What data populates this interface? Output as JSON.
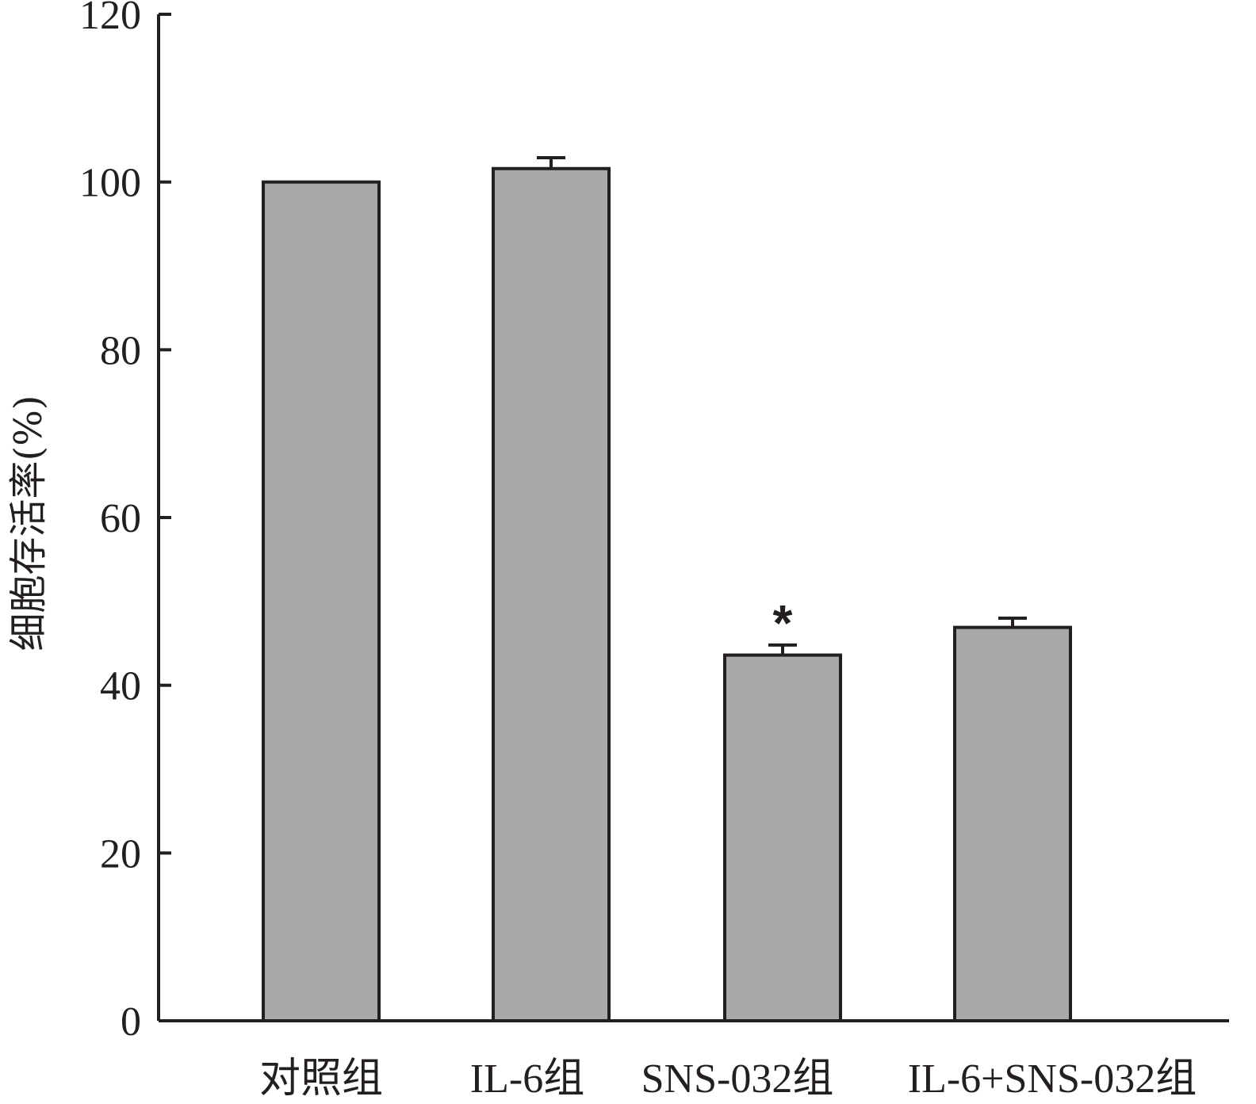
{
  "chart_data": {
    "type": "bar",
    "categories": [
      "对照组",
      "IL-6组",
      "SNS-032组",
      "IL-6+SNS-032组"
    ],
    "values": [
      100,
      101.6,
      43.6,
      46.9
    ],
    "errors": [
      0,
      1.3,
      1.2,
      1.1
    ],
    "annotations": [
      "",
      "",
      "*",
      ""
    ],
    "xlabel": "",
    "ylabel": "细胞存活率(%)",
    "ylim": [
      0,
      120
    ],
    "yticks": [
      0,
      20,
      40,
      60,
      80,
      100,
      120
    ],
    "grid": false,
    "colors": {
      "bar_fill": "#a9a9a9",
      "stroke": "#231f20"
    }
  }
}
